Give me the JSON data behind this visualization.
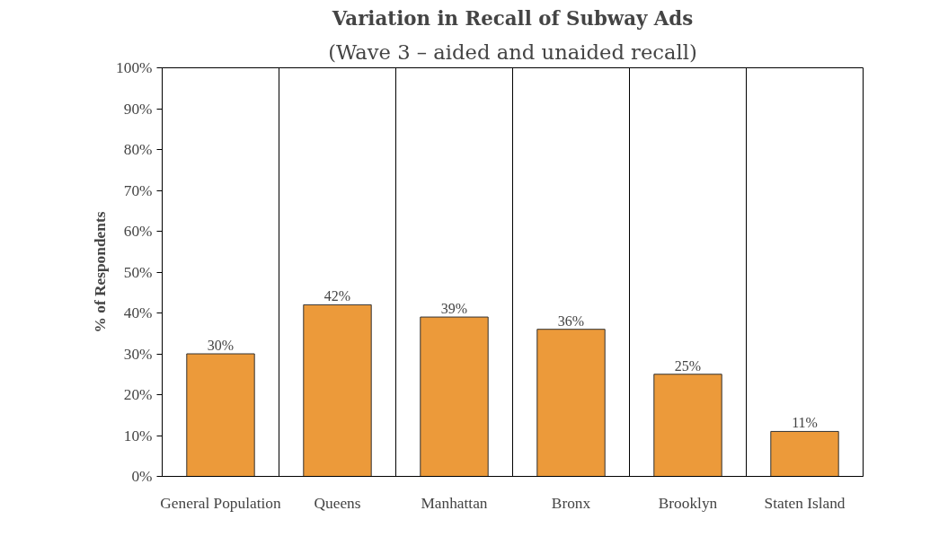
{
  "chart_data": {
    "type": "bar",
    "title": "Variation in Recall of Subway Ads",
    "subtitle": "(Wave 3 – aided and unaided recall)",
    "ylabel": "% of Respondents",
    "categories": [
      "General Population",
      "Queens",
      "Manhattan",
      "Bronx",
      "Brooklyn",
      "Staten Island"
    ],
    "values": [
      30,
      42,
      39,
      36,
      25,
      11
    ],
    "value_labels": [
      "30%",
      "42%",
      "39%",
      "36%",
      "25%",
      "11%"
    ],
    "color": "#ec9a3a",
    "ylim": [
      0,
      100
    ],
    "yticks": [
      {
        "value": 0,
        "label": "0%"
      },
      {
        "value": 10,
        "label": "10%"
      },
      {
        "value": 20,
        "label": "20%"
      },
      {
        "value": 30,
        "label": "30%"
      },
      {
        "value": 40,
        "label": "40%"
      },
      {
        "value": 50,
        "label": "50%"
      },
      {
        "value": 60,
        "label": "60%"
      },
      {
        "value": 70,
        "label": "70%"
      },
      {
        "value": 80,
        "label": "80%"
      },
      {
        "value": 90,
        "label": "90%"
      },
      {
        "value": 100,
        "label": "100%"
      }
    ],
    "grid": "x"
  }
}
